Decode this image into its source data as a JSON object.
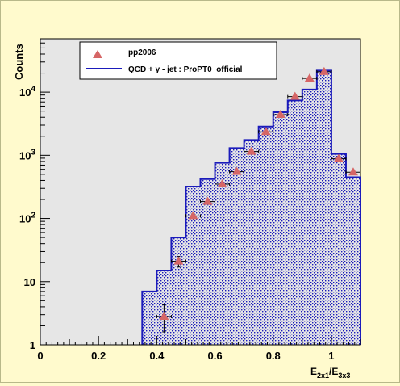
{
  "chart_data": {
    "type": "bar",
    "ylabel": "Counts",
    "xlabel": {
      "base1": "E",
      "sub1": "2x1",
      "slash": "/E",
      "sub2": "3x3"
    },
    "xlim": [
      0,
      1.1
    ],
    "ylim": [
      1,
      70000
    ],
    "y_scale": "log",
    "x_ticks": [
      {
        "value": 0,
        "label": "0"
      },
      {
        "value": 0.2,
        "label": "0.2"
      },
      {
        "value": 0.4,
        "label": "0.4"
      },
      {
        "value": 0.6,
        "label": "0.6"
      },
      {
        "value": 0.8,
        "label": "0.8"
      },
      {
        "value": 1.0,
        "label": "1"
      }
    ],
    "y_ticks": [
      {
        "value": 1,
        "label": "1"
      },
      {
        "value": 10,
        "label": "10"
      },
      {
        "value": 100,
        "label": "10",
        "exp": "2"
      },
      {
        "value": 1000,
        "label": "10",
        "exp": "3"
      },
      {
        "value": 10000,
        "label": "10",
        "exp": "4"
      }
    ],
    "legend": {
      "placement": "top-center",
      "entries": [
        {
          "label": "pp2006",
          "marker": "triangle",
          "color": "#d66666"
        },
        {
          "label": "QCD + γ - jet : ProPT0_official",
          "marker": "line",
          "color": "#1b1bbb"
        }
      ]
    },
    "histogram": {
      "name": "QCD + γ - jet : ProPT0_official",
      "color": "#1b1bbb",
      "bin_edges": [
        0.35,
        0.4,
        0.45,
        0.5,
        0.55,
        0.6,
        0.65,
        0.7,
        0.75,
        0.8,
        0.85,
        0.9,
        0.95,
        1.0,
        1.05,
        1.1
      ],
      "values": [
        7,
        15,
        50,
        320,
        420,
        760,
        1300,
        1750,
        2850,
        4800,
        7400,
        11000,
        22000,
        1050,
        450
      ]
    },
    "points": {
      "name": "pp2006",
      "color": "#d66666",
      "x": [
        0.425,
        0.475,
        0.525,
        0.575,
        0.625,
        0.675,
        0.725,
        0.775,
        0.825,
        0.875,
        0.925,
        0.975,
        1.025,
        1.075
      ],
      "y": [
        2.8,
        21,
        110,
        185,
        350,
        550,
        1150,
        2350,
        4400,
        8500,
        16500,
        21000,
        880,
        540
      ],
      "y_low": [
        1.6,
        17,
        100,
        175,
        335,
        530,
        1110,
        2300,
        4300,
        8350,
        16200,
        20700,
        860,
        525
      ],
      "y_high": [
        4.3,
        25,
        120,
        195,
        365,
        570,
        1190,
        2400,
        4500,
        8650,
        16800,
        21300,
        900,
        555
      ],
      "x_err": 0.025
    }
  }
}
